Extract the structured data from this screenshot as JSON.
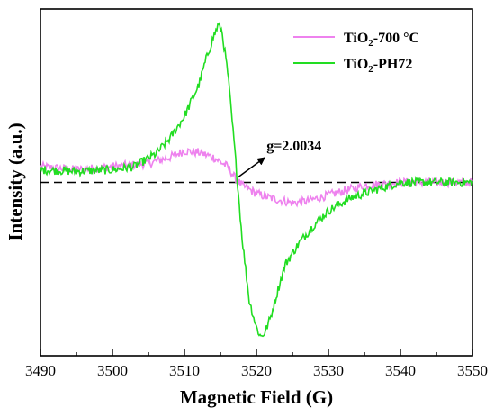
{
  "chart_data": {
    "type": "line",
    "xlabel": "Magnetic Field (G)",
    "ylabel": "Intensity (a.u.)",
    "xlim": [
      3490,
      3550
    ],
    "ylim": [
      -1.1,
      1.1
    ],
    "xticks": [
      3490,
      3500,
      3510,
      3520,
      3530,
      3540,
      3550
    ],
    "y_tick_labels": false,
    "grid": false,
    "legend_position": "top-right",
    "baseline": {
      "y": 0,
      "style": "dashed"
    },
    "series": [
      {
        "name_parts": [
          "TiO",
          "2",
          "-700 °C"
        ],
        "color": "#ee82ee",
        "x": [
          3490,
          3495,
          3500,
          3505,
          3508,
          3510,
          3512,
          3514,
          3516,
          3517,
          3518,
          3520,
          3522,
          3525,
          3527,
          3530,
          3535,
          3540,
          3545,
          3550
        ],
        "y": [
          0.1,
          0.08,
          0.1,
          0.12,
          0.16,
          0.2,
          0.19,
          0.16,
          0.1,
          0.03,
          -0.02,
          -0.07,
          -0.1,
          -0.13,
          -0.12,
          -0.08,
          -0.02,
          0.0,
          0.0,
          0.0
        ]
      },
      {
        "name_parts": [
          "TiO",
          "2",
          "-PH72"
        ],
        "color": "#22dd22",
        "x": [
          3490,
          3495,
          3500,
          3503,
          3506,
          3508,
          3510,
          3512,
          3513,
          3514,
          3514.7,
          3515.2,
          3516,
          3517,
          3518,
          3519,
          3520,
          3520.6,
          3521.2,
          3522,
          3523,
          3524,
          3526,
          3528,
          3530,
          3533,
          3537,
          3540,
          3545,
          3550
        ],
        "y": [
          0.08,
          0.07,
          0.08,
          0.1,
          0.18,
          0.28,
          0.42,
          0.62,
          0.78,
          0.92,
          1.0,
          0.96,
          0.7,
          0.2,
          -0.35,
          -0.75,
          -0.92,
          -0.98,
          -0.95,
          -0.85,
          -0.68,
          -0.52,
          -0.38,
          -0.27,
          -0.18,
          -0.1,
          -0.04,
          0.0,
          0.0,
          0.0
        ]
      }
    ],
    "annotation": {
      "text": "g=2.0034",
      "x": 3517.4,
      "y": 0.02
    }
  }
}
